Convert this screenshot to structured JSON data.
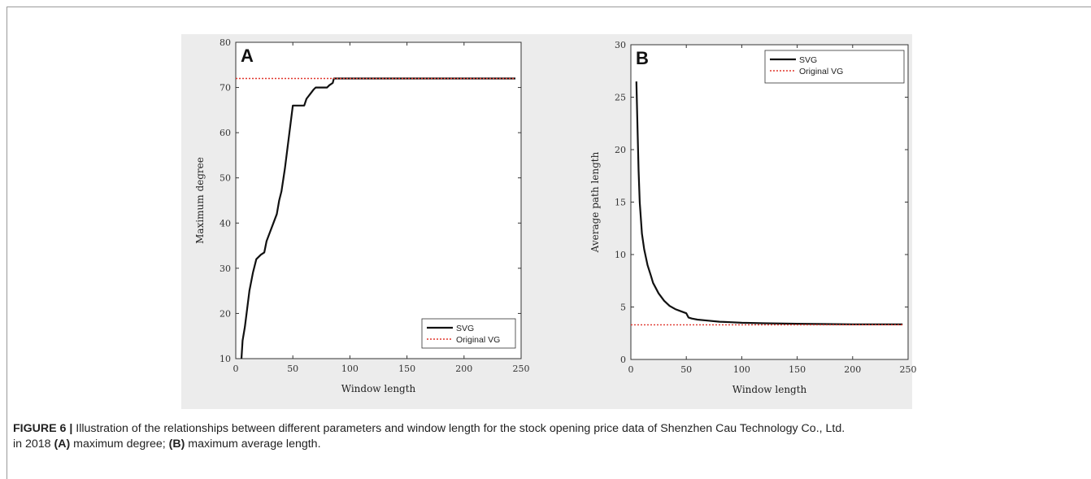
{
  "chart_data": [
    {
      "type": "line",
      "panel_label": "A",
      "xlabel": "Window length",
      "ylabel": "Maximum degree",
      "xlim": [
        0,
        250
      ],
      "ylim": [
        10,
        80
      ],
      "xticks": [
        0,
        50,
        100,
        150,
        200,
        250
      ],
      "yticks": [
        10,
        20,
        30,
        40,
        50,
        60,
        70,
        80
      ],
      "grid": false,
      "legend_position": "bottom-right",
      "series": [
        {
          "name": "SVG",
          "color": "#111111",
          "style": "solid",
          "x": [
            5,
            6,
            8,
            10,
            12,
            15,
            18,
            22,
            25,
            27,
            30,
            33,
            36,
            38,
            40,
            43,
            45,
            47,
            49,
            50,
            52,
            55,
            60,
            62,
            65,
            68,
            70,
            75,
            80,
            82,
            85,
            86,
            90,
            120,
            160,
            200,
            245
          ],
          "y": [
            10,
            14,
            17,
            21,
            25,
            29,
            32,
            33,
            33.5,
            36,
            38,
            40,
            42,
            45,
            47,
            52,
            56,
            60,
            64,
            66,
            66,
            66,
            66,
            67.5,
            68.5,
            69.5,
            70,
            70,
            70,
            70.5,
            71,
            72,
            72,
            72,
            72,
            72,
            72
          ]
        },
        {
          "name": "Original VG",
          "color": "#e0362c",
          "style": "dotted",
          "x": [
            0,
            245
          ],
          "y": [
            72,
            72
          ]
        }
      ]
    },
    {
      "type": "line",
      "panel_label": "B",
      "xlabel": "Window length",
      "ylabel": "Average path length",
      "xlim": [
        0,
        250
      ],
      "ylim": [
        0,
        30
      ],
      "xticks": [
        0,
        50,
        100,
        150,
        200,
        250
      ],
      "yticks": [
        0,
        5,
        10,
        15,
        20,
        25,
        30
      ],
      "grid": false,
      "legend_position": "top-right",
      "series": [
        {
          "name": "SVG",
          "color": "#111111",
          "style": "solid",
          "x": [
            5,
            6,
            7,
            8,
            10,
            12,
            15,
            18,
            20,
            25,
            30,
            35,
            40,
            45,
            50,
            52,
            55,
            60,
            70,
            80,
            90,
            100,
            120,
            150,
            200,
            245
          ],
          "y": [
            26.5,
            22,
            18,
            15,
            12,
            10.5,
            9,
            8,
            7.3,
            6.3,
            5.6,
            5.1,
            4.8,
            4.6,
            4.4,
            4.0,
            3.9,
            3.8,
            3.7,
            3.6,
            3.55,
            3.5,
            3.45,
            3.4,
            3.35,
            3.35
          ]
        },
        {
          "name": "Original VG",
          "color": "#e0362c",
          "style": "dotted",
          "x": [
            0,
            245
          ],
          "y": [
            3.3,
            3.3
          ]
        }
      ]
    }
  ],
  "caption": {
    "label": "FIGURE 6 |",
    "line1": " Illustration of the relationships between different parameters and window length for the stock opening price data of Shenzhen Cau Technology Co., Ltd.",
    "line2_pre": "in 2018 ",
    "a_label": "(A)",
    "a_text": " maximum degree; ",
    "b_label": "(B)",
    "b_text": " maximum average length."
  }
}
